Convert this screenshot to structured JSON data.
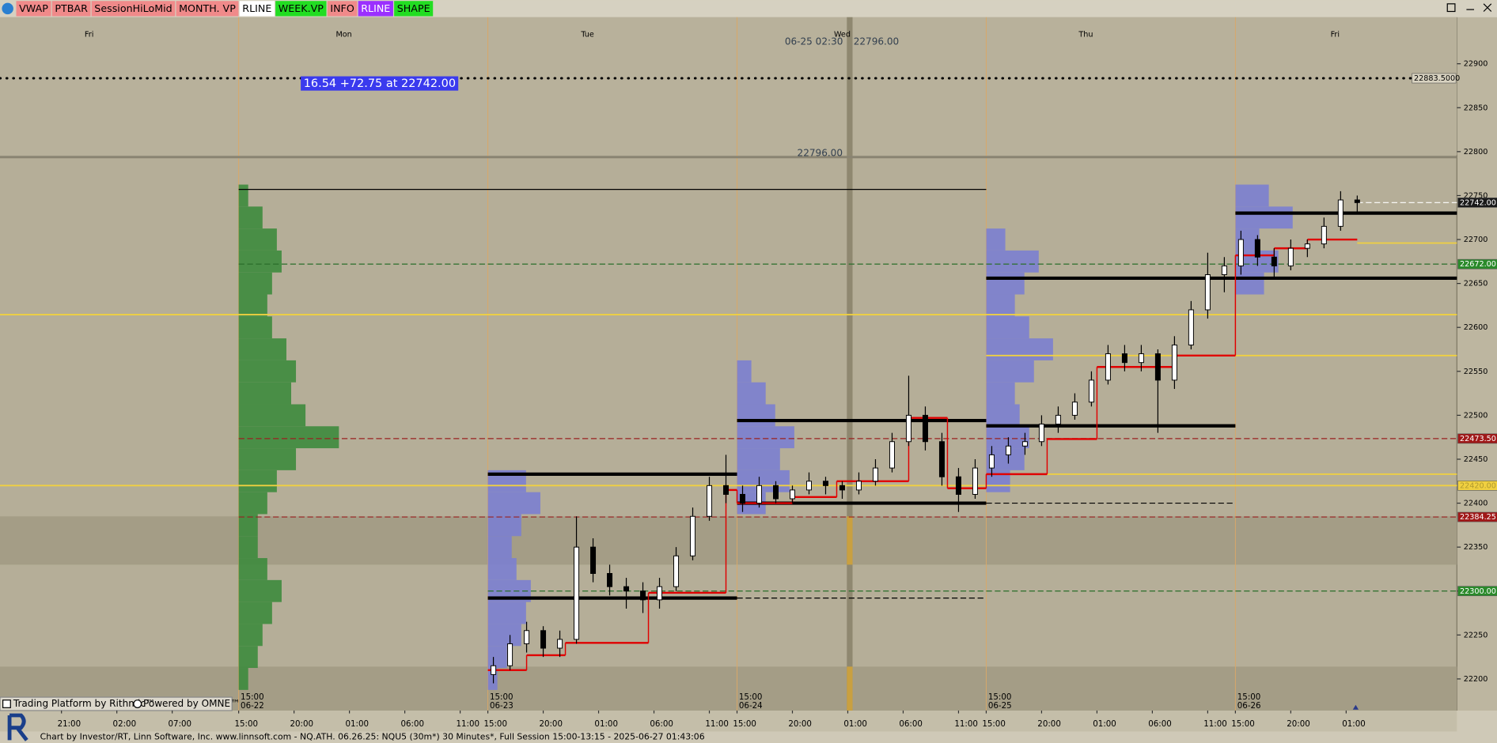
{
  "toolbar": {
    "buttons": [
      {
        "label": "VWAP",
        "bg": "#f08a8a",
        "fg": "#000000"
      },
      {
        "label": "PTBAR",
        "bg": "#f08a8a",
        "fg": "#000000"
      },
      {
        "label": "SessionHiLoMid",
        "bg": "#f08a8a",
        "fg": "#000000"
      },
      {
        "label": "MONTH. VP",
        "bg": "#f08a8a",
        "fg": "#000000"
      },
      {
        "label": "RLINE",
        "bg": "#ffffff",
        "fg": "#000000"
      },
      {
        "label": "WEEK.VP",
        "bg": "#22dd22",
        "fg": "#000000"
      },
      {
        "label": "INFO",
        "bg": "#f08a8a",
        "fg": "#000000"
      },
      {
        "label": "RLINE",
        "bg": "#9b30ff",
        "fg": "#ffffff"
      },
      {
        "label": "SHAPE",
        "bg": "#22dd22",
        "fg": "#000000"
      }
    ]
  },
  "cursor": {
    "time": "06-25 02:30",
    "price": "22796.00"
  },
  "info_box": "16.54  +72.75 at 22742.00",
  "branding": {
    "rithmic": "Trading Platform by Rithmic™",
    "omne": "Powered by OMNE™"
  },
  "status_bar": "Chart by Investor/RT, Linn Software, Inc. www.linnsoft.com - NQ.ATH.    06.26.25: NQU5 (30m*) 30 Minutes*, Full Session 15:00-13:15 - 2025-06-27 01:43:06",
  "chart_data": {
    "type": "candlestick",
    "xlim": [
      -43.1,
      220
    ],
    "ylim": [
      22164,
      22953
    ],
    "yticks": [
      22200,
      22250,
      22300,
      22350,
      22400,
      22450,
      22500,
      22550,
      22600,
      22650,
      22700,
      22750,
      22800,
      22850,
      22900
    ],
    "xticks": [
      {
        "value": -32,
        "label": "21:00"
      },
      {
        "value": -22,
        "label": "02:00"
      },
      {
        "value": -12,
        "label": "07:00"
      },
      {
        "value": 0,
        "label": "15:00"
      },
      {
        "value": 10,
        "label": "20:00"
      },
      {
        "value": 20,
        "label": "01:00"
      },
      {
        "value": 30,
        "label": "06:00"
      },
      {
        "value": 40,
        "label": "11:00"
      },
      {
        "value": 45,
        "label": "15:00"
      },
      {
        "value": 55,
        "label": "20:00"
      },
      {
        "value": 65,
        "label": "01:00"
      },
      {
        "value": 75,
        "label": "06:00"
      },
      {
        "value": 85,
        "label": "11:00"
      },
      {
        "value": 90,
        "label": "15:00"
      },
      {
        "value": 100,
        "label": "20:00"
      },
      {
        "value": 110,
        "label": "01:00"
      },
      {
        "value": 120,
        "label": "06:00"
      },
      {
        "value": 130,
        "label": "11:00"
      },
      {
        "value": 135,
        "label": "15:00"
      },
      {
        "value": 145,
        "label": "20:00"
      },
      {
        "value": 155,
        "label": "01:00"
      },
      {
        "value": 165,
        "label": "06:00"
      },
      {
        "value": 175,
        "label": "11:00"
      },
      {
        "value": 180,
        "label": "15:00"
      },
      {
        "value": 190,
        "label": "20:00"
      },
      {
        "value": 200,
        "label": "01:00"
      }
    ],
    "day_labels": [
      {
        "value": -27,
        "label": "Fri"
      },
      {
        "value": 19,
        "label": "Mon"
      },
      {
        "value": 63,
        "label": "Tue"
      },
      {
        "value": 109,
        "label": "Wed"
      },
      {
        "value": 153,
        "label": "Thu"
      },
      {
        "value": 198,
        "label": "Fri"
      }
    ],
    "session_labels": [
      {
        "value": 0,
        "time": "15:00",
        "date": "06-22"
      },
      {
        "value": 45,
        "time": "15:00",
        "date": "06-23"
      },
      {
        "value": 90,
        "time": "15:00",
        "date": "06-24"
      },
      {
        "value": 135,
        "time": "15:00",
        "date": "06-25"
      },
      {
        "value": 180,
        "time": "15:00",
        "date": "06-26"
      }
    ],
    "candles": {
      "up_color": "#ffffff",
      "down_color": "#000000",
      "x": [
        46,
        49,
        52,
        55,
        58,
        61,
        64,
        67,
        70,
        73,
        76,
        79,
        82,
        85,
        88,
        91,
        94,
        97,
        100,
        103,
        106,
        109,
        112,
        115,
        118,
        121,
        124,
        127,
        130,
        133,
        136,
        139,
        142,
        145,
        148,
        151,
        154,
        157,
        160,
        163,
        166,
        169,
        172,
        175,
        178,
        181,
        184,
        187,
        190,
        193,
        196,
        199,
        202
      ],
      "open": [
        22205,
        22215,
        22240,
        22255,
        22235,
        22245,
        22350,
        22320,
        22305,
        22300,
        22290,
        22305,
        22340,
        22385,
        22420,
        22410,
        22400,
        22420,
        22405,
        22415,
        22425,
        22420,
        22415,
        22425,
        22440,
        22470,
        22500,
        22470,
        22430,
        22410,
        22440,
        22455,
        22465,
        22470,
        22490,
        22500,
        22515,
        22540,
        22570,
        22560,
        22570,
        22540,
        22580,
        22620,
        22660,
        22670,
        22700,
        22680,
        22670,
        22690,
        22695,
        22715,
        22745
      ],
      "high": [
        22225,
        22250,
        22265,
        22260,
        22255,
        22385,
        22360,
        22330,
        22315,
        22310,
        22315,
        22350,
        22395,
        22430,
        22455,
        22420,
        22430,
        22425,
        22420,
        22435,
        22430,
        22425,
        22435,
        22450,
        22480,
        22545,
        22510,
        22480,
        22440,
        22450,
        22465,
        22475,
        22480,
        22500,
        22510,
        22525,
        22550,
        22580,
        22580,
        22580,
        22575,
        22590,
        22630,
        22685,
        22680,
        22710,
        22705,
        22690,
        22700,
        22700,
        22725,
        22755,
        22750
      ],
      "low": [
        22195,
        22210,
        22230,
        22225,
        22225,
        22240,
        22310,
        22295,
        22280,
        22275,
        22280,
        22300,
        22335,
        22380,
        22400,
        22390,
        22395,
        22400,
        22400,
        22410,
        22410,
        22405,
        22410,
        22420,
        22435,
        22465,
        22460,
        22420,
        22390,
        22405,
        22430,
        22445,
        22455,
        22465,
        22480,
        22495,
        22510,
        22535,
        22550,
        22550,
        22480,
        22530,
        22575,
        22610,
        22640,
        22660,
        22670,
        22655,
        22665,
        22680,
        22690,
        22710,
        22730
      ],
      "close": [
        22215,
        22240,
        22255,
        22235,
        22245,
        22350,
        22320,
        22305,
        22300,
        22290,
        22305,
        22340,
        22385,
        22420,
        22410,
        22400,
        22420,
        22405,
        22415,
        22425,
        22420,
        22415,
        22425,
        22440,
        22470,
        22500,
        22470,
        22430,
        22410,
        22440,
        22455,
        22465,
        22470,
        22490,
        22500,
        22515,
        22540,
        22570,
        22560,
        22570,
        22540,
        22580,
        22620,
        22660,
        22670,
        22700,
        22680,
        22670,
        22690,
        22695,
        22715,
        22745,
        22742
      ]
    },
    "levels": [
      {
        "value": 22883.5,
        "label": "22883.5000",
        "line_color": "#000000",
        "style": "dotted",
        "label_bg": "#d8d2c0",
        "label_color": "#000000"
      },
      {
        "value": 22742,
        "label": "22742.00",
        "line_color": "#ffffff",
        "style": "dashed",
        "label_bg": "#1a1a1a",
        "label_color": "#ffffff",
        "from": 202
      },
      {
        "value": 22672,
        "label": "22672.00",
        "line_color": "#2a6e2a",
        "style": "dashed",
        "label_bg": "#2a8a2a",
        "label_color": "#ffffff",
        "from": 0
      },
      {
        "value": 22473.5,
        "label": "22473.50",
        "line_color": "#9a2020",
        "style": "dashed",
        "label_bg": "#a01818",
        "label_color": "#ffffff",
        "from": 0
      },
      {
        "value": 22420,
        "label": "22420.00",
        "line_color": "#f0d040",
        "style": "solid",
        "label_bg": "#f0d040",
        "label_color": "#b09a30"
      },
      {
        "value": 22384.25,
        "label": "22384.25",
        "line_color": "#9a2020",
        "style": "dashed",
        "label_bg": "#a01818",
        "label_color": "#ffffff",
        "from": 0
      },
      {
        "value": 22300,
        "label": "22300.00",
        "line_color": "#2a6e2a",
        "style": "dashed",
        "label_bg": "#2a8a2a",
        "label_color": "#ffffff",
        "from": 45
      }
    ],
    "marker_line": {
      "value": 22796,
      "label": "22796.00"
    },
    "ranges": [
      {
        "from": 0,
        "to": 135,
        "value": 22757,
        "color": "#000000",
        "style": "thin"
      },
      {
        "from": 45,
        "to": 90,
        "value": 22433,
        "color": "#000000",
        "style": "thick"
      },
      {
        "from": 45,
        "to": 90,
        "value": 22292,
        "color": "#000000",
        "style": "thick"
      },
      {
        "from": 90,
        "to": 135,
        "value": 22494,
        "color": "#000000",
        "style": "thick"
      },
      {
        "from": 90,
        "to": 135,
        "value": 22400,
        "color": "#000000",
        "style": "thick"
      },
      {
        "from": 135,
        "to": 220,
        "value": 22656,
        "color": "#000000",
        "style": "thick"
      },
      {
        "from": 135,
        "to": 180,
        "value": 22488,
        "color": "#000000",
        "style": "thick"
      },
      {
        "from": 180,
        "to": 220,
        "value": 22730,
        "color": "#000000",
        "style": "thick"
      },
      {
        "from": 90,
        "to": 135,
        "value": 22292,
        "color": "#000000",
        "style": "dashed"
      },
      {
        "from": 135,
        "to": 180,
        "value": 22400,
        "color": "#000000",
        "style": "dashed"
      },
      {
        "from": -43.1,
        "to": 220,
        "value": 22614.5,
        "color": "#f0d040",
        "style": "solid"
      },
      {
        "from": 135,
        "to": 220,
        "value": 22568,
        "color": "#f0d040",
        "style": "solid"
      },
      {
        "from": 202,
        "to": 220,
        "value": 22696,
        "color": "#f0d040",
        "style": "solid"
      },
      {
        "from": 135,
        "to": 220,
        "value": 22433,
        "color": "#f0d040",
        "style": "solid"
      }
    ],
    "session_mid": {
      "color": "#e00000",
      "segments": [
        {
          "from": 45,
          "to": 52,
          "value": 22210
        },
        {
          "from": 52,
          "to": 59,
          "value": 22227
        },
        {
          "from": 59,
          "to": 74,
          "value": 22241
        },
        {
          "from": 74,
          "to": 88,
          "value": 22298
        },
        {
          "from": 88,
          "to": 90,
          "value": 22415
        },
        {
          "from": 90,
          "to": 100,
          "value": 22400
        },
        {
          "from": 100,
          "to": 108,
          "value": 22407
        },
        {
          "from": 108,
          "to": 121,
          "value": 22425
        },
        {
          "from": 121,
          "to": 128,
          "value": 22497
        },
        {
          "from": 128,
          "to": 135,
          "value": 22417
        },
        {
          "from": 135,
          "to": 146,
          "value": 22433
        },
        {
          "from": 146,
          "to": 155,
          "value": 22473
        },
        {
          "from": 155,
          "to": 169,
          "value": 22555
        },
        {
          "from": 169,
          "to": 180,
          "value": 22568
        },
        {
          "from": 180,
          "to": 187,
          "value": 22682
        },
        {
          "from": 187,
          "to": 193,
          "value": 22690
        },
        {
          "from": 193,
          "to": 202,
          "value": 22700
        }
      ]
    },
    "zones": [
      [
        22330,
        22385
      ],
      [
        22164,
        22214
      ]
    ],
    "volume_profiles": [
      {
        "start": 0,
        "color": "#3d8b3d",
        "prices": [
          22200,
          22225,
          22250,
          22275,
          22300,
          22325,
          22350,
          22375,
          22400,
          22425,
          22450,
          22475,
          22500,
          22525,
          22550,
          22575,
          22600,
          22625,
          22650,
          22675,
          22700,
          22725,
          22750
        ],
        "volumes": [
          10,
          20,
          25,
          35,
          45,
          30,
          20,
          20,
          30,
          40,
          60,
          105,
          70,
          55,
          60,
          50,
          35,
          30,
          35,
          45,
          40,
          25,
          10
        ]
      },
      {
        "start": 45,
        "color": "#7b7fd0",
        "prices": [
          22200,
          22225,
          22250,
          22275,
          22300,
          22325,
          22350,
          22375,
          22400,
          22425
        ],
        "volumes": [
          10,
          20,
          35,
          40,
          45,
          30,
          25,
          35,
          55,
          40
        ]
      },
      {
        "start": 90,
        "color": "#7b7fd0",
        "prices": [
          22400,
          22425,
          22450,
          22475,
          22500,
          22525,
          22550
        ],
        "volumes": [
          30,
          55,
          45,
          60,
          40,
          30,
          15
        ]
      },
      {
        "start": 135,
        "color": "#7b7fd0",
        "prices": [
          22425,
          22450,
          22475,
          22500,
          22525,
          22550,
          22575,
          22600,
          22625,
          22650,
          22675,
          22700
        ],
        "volumes": [
          25,
          40,
          45,
          35,
          30,
          50,
          70,
          45,
          30,
          40,
          55,
          20
        ]
      },
      {
        "start": 180,
        "color": "#7b7fd0",
        "prices": [
          22650,
          22675,
          22700,
          22725,
          22750
        ],
        "volumes": [
          30,
          45,
          25,
          60,
          35
        ]
      }
    ]
  }
}
